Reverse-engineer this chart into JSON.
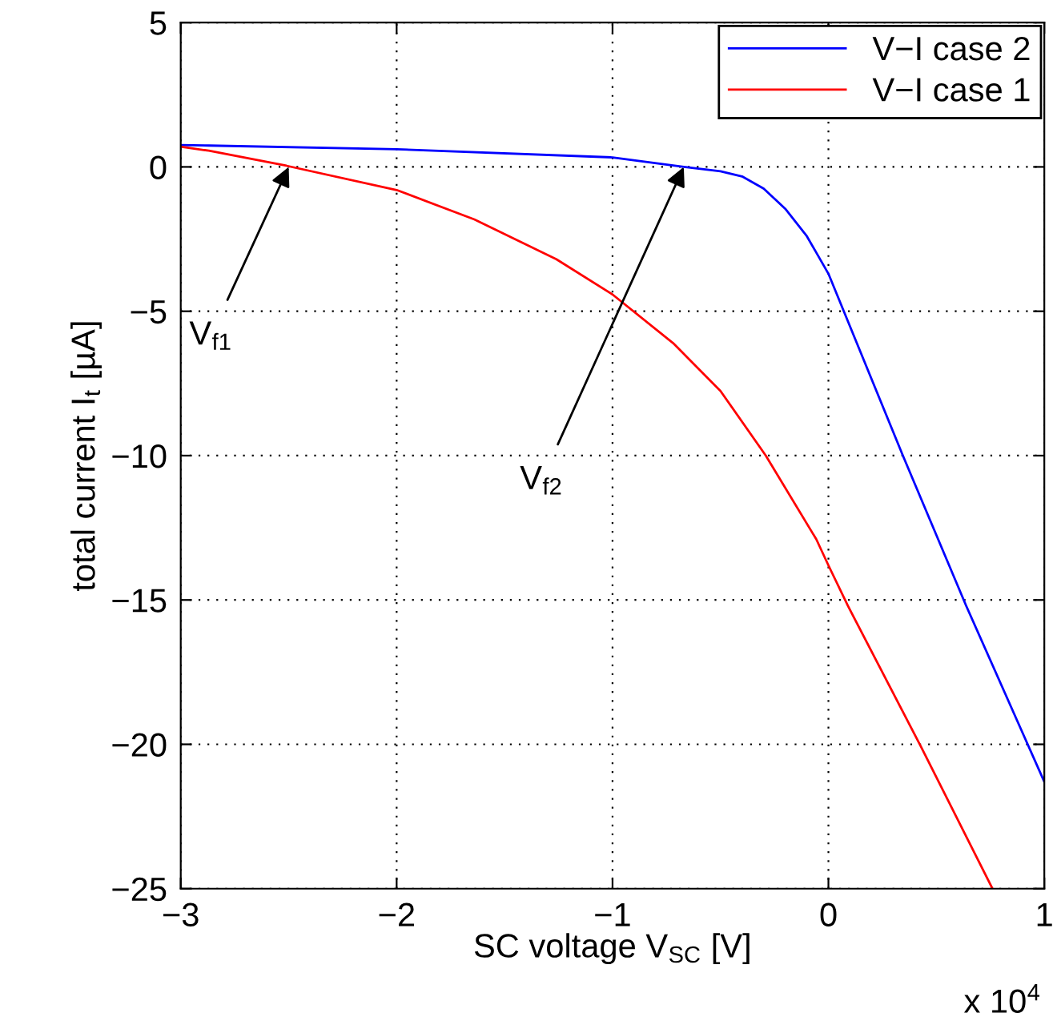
{
  "chart_data": {
    "type": "line",
    "xlabel": "SC voltage V$_{SC}$ [V]",
    "ylabel": "total current I$_{t}$ [µA]",
    "series": [
      {
        "name": "V−I case 2",
        "color": "#0000ff",
        "x": [
          -3,
          -2.87,
          -2,
          -1,
          -0.67,
          -0.5,
          -0.4,
          -0.3,
          -0.2,
          -0.1,
          0,
          0.345,
          0.638,
          1
        ],
        "values": [
          0.76,
          0.74,
          0.61,
          0.33,
          0,
          -0.15,
          -0.33,
          -0.75,
          -1.45,
          -2.4,
          -3.7,
          -10.0,
          -15.2,
          -21.3
        ]
      },
      {
        "name": "V−I case 1",
        "color": "#ff0000",
        "x": [
          -3,
          -2.87,
          -2.51,
          -2,
          -1.64,
          -1.26,
          -1,
          -0.72,
          -0.5,
          -0.29,
          -0.056,
          0,
          0.09,
          0.43,
          0.76
        ],
        "values": [
          0.7,
          0.56,
          0.04,
          -0.8,
          -1.82,
          -3.2,
          -4.42,
          -6.1,
          -7.76,
          -10.0,
          -12.9,
          -13.8,
          -15.2,
          -20.1,
          -25
        ]
      }
    ],
    "xlim": [
      -3,
      1
    ],
    "ylim": [
      -25,
      5
    ],
    "xticks": [
      {
        "value": -3,
        "label": "−3"
      },
      {
        "value": -2,
        "label": "−2"
      },
      {
        "value": -1,
        "label": "−1"
      },
      {
        "value": 0,
        "label": "0"
      },
      {
        "value": 1,
        "label": "1"
      }
    ],
    "yticks": [
      {
        "value": -25,
        "label": "−25"
      },
      {
        "value": -20,
        "label": "−20"
      },
      {
        "value": -15,
        "label": "−15"
      },
      {
        "value": -10,
        "label": "−10"
      },
      {
        "value": -5,
        "label": "−5"
      },
      {
        "value": 0,
        "label": "0"
      },
      {
        "value": 5,
        "label": "5"
      }
    ],
    "annotations": [
      {
        "text": "V$_{f1}$",
        "x": -2.5,
        "y": 0
      },
      {
        "text": "V$_{f2}$",
        "x": -0.67,
        "y": 0
      },
      "x 10$^{4}$"
    ],
    "grid": true,
    "legend": "top right",
    "line_style": "solid",
    "marker": "none"
  }
}
